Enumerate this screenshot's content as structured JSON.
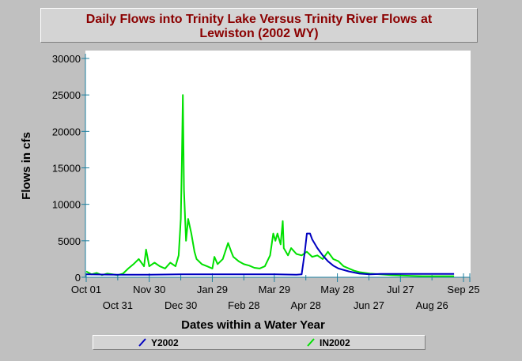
{
  "chart_data": {
    "type": "line",
    "title_lines": [
      "Daily Flows into Trinity Lake Versus Trinity River Flows at",
      "Lewiston (2002 WY)"
    ],
    "xlabel": "Dates within a Water Year",
    "ylabel": "Flows in cfs",
    "ylim": [
      0,
      30000
    ],
    "xlim": [
      0,
      365
    ],
    "y_ticks": [
      0,
      5000,
      10000,
      15000,
      20000,
      25000,
      30000
    ],
    "x_ticks_top": [
      {
        "day": 0,
        "label": "Oct 01"
      },
      {
        "day": 60,
        "label": "Nov 30"
      },
      {
        "day": 120,
        "label": "Jan 29"
      },
      {
        "day": 179,
        "label": "Mar 29"
      },
      {
        "day": 239,
        "label": "May 28"
      },
      {
        "day": 299,
        "label": "Jul 27"
      },
      {
        "day": 359,
        "label": "Sep 25"
      }
    ],
    "x_ticks_bottom": [
      {
        "day": 30,
        "label": "Oct 31"
      },
      {
        "day": 90,
        "label": "Dec 30"
      },
      {
        "day": 150,
        "label": "Feb 28"
      },
      {
        "day": 209,
        "label": "Apr 28"
      },
      {
        "day": 269,
        "label": "Jun 27"
      },
      {
        "day": 329,
        "label": "Aug 26"
      }
    ],
    "series": [
      {
        "name": "Y2002",
        "color": "#0000c0",
        "x": [
          0,
          30,
          60,
          90,
          120,
          150,
          180,
          200,
          205,
          208,
          210,
          213,
          215,
          220,
          225,
          230,
          235,
          240,
          250,
          260,
          270,
          280,
          300,
          330,
          350
        ],
        "values": [
          400,
          350,
          350,
          400,
          400,
          400,
          400,
          350,
          400,
          3500,
          6000,
          6000,
          5200,
          4000,
          3000,
          2200,
          1600,
          1200,
          800,
          500,
          400,
          450,
          450,
          450,
          450
        ]
      },
      {
        "name": "IN2002",
        "color": "#00e000",
        "x": [
          0,
          5,
          10,
          15,
          20,
          25,
          30,
          35,
          40,
          45,
          50,
          55,
          57,
          60,
          65,
          70,
          75,
          80,
          85,
          88,
          90,
          91,
          92,
          93,
          95,
          97,
          100,
          103,
          105,
          110,
          115,
          120,
          122,
          125,
          130,
          135,
          138,
          140,
          145,
          150,
          155,
          160,
          165,
          170,
          175,
          178,
          180,
          182,
          185,
          187,
          188,
          190,
          192,
          195,
          200,
          205,
          210,
          215,
          220,
          225,
          230,
          235,
          240,
          245,
          250,
          255,
          260,
          270,
          280,
          290,
          300,
          310,
          320,
          330,
          340,
          350
        ],
        "values": [
          800,
          400,
          600,
          300,
          500,
          400,
          300,
          500,
          1200,
          1800,
          2500,
          1500,
          3800,
          1500,
          2000,
          1500,
          1200,
          2000,
          1500,
          3000,
          8000,
          15500,
          25000,
          12000,
          5000,
          8000,
          6000,
          3500,
          2500,
          1800,
          1500,
          1200,
          2800,
          1800,
          2500,
          4700,
          3500,
          2800,
          2200,
          1800,
          1600,
          1300,
          1200,
          1500,
          3000,
          6000,
          5000,
          6000,
          4500,
          7700,
          4000,
          3500,
          3000,
          4000,
          3200,
          3000,
          3500,
          2800,
          3000,
          2500,
          3500,
          2500,
          2200,
          1500,
          1200,
          900,
          700,
          500,
          400,
          300,
          250,
          200,
          150,
          150,
          150,
          150
        ]
      }
    ]
  }
}
